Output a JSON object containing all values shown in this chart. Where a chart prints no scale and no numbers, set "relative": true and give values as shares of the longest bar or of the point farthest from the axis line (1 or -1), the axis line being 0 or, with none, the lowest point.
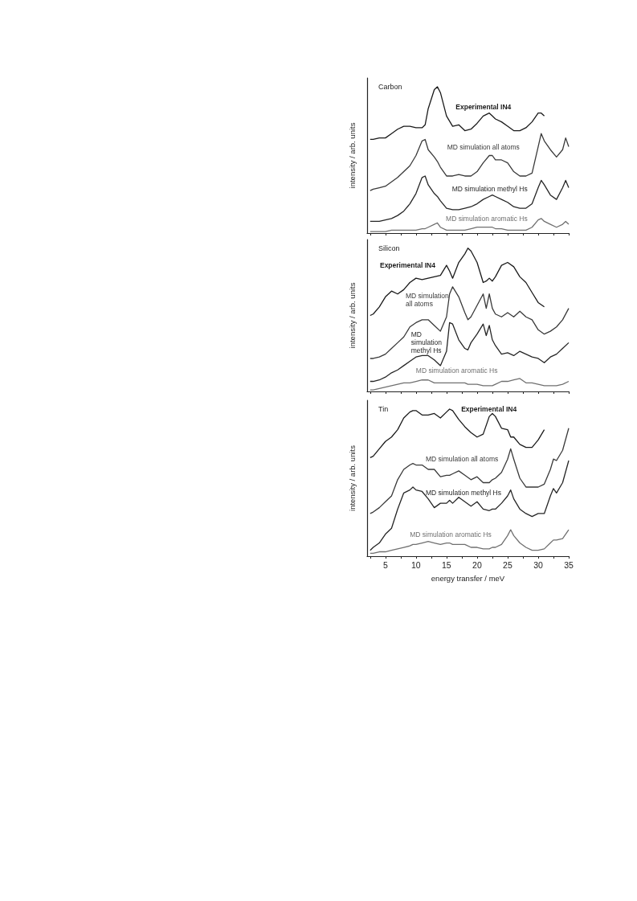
{
  "chart_data": [
    {
      "type": "line",
      "title": "Carbon",
      "ylabel": "intensity / arb. units",
      "relative": true,
      "marker": "none",
      "tick_labels": false,
      "xlim": [
        2,
        35
      ],
      "xticks": [
        {
          "value": 2.5,
          "label": null
        },
        {
          "value": 5,
          "label": null
        },
        {
          "value": 7.5,
          "label": null
        },
        {
          "value": 10,
          "label": null
        },
        {
          "value": 12.5,
          "label": null
        },
        {
          "value": 15,
          "label": null
        },
        {
          "value": 17.5,
          "label": null
        },
        {
          "value": 20,
          "label": null
        },
        {
          "value": 22.5,
          "label": null
        },
        {
          "value": 25,
          "label": null
        },
        {
          "value": 27.5,
          "label": null
        },
        {
          "value": 30,
          "label": null
        },
        {
          "value": 32.5,
          "label": null
        },
        {
          "value": 35,
          "label": null
        }
      ],
      "x": [
        2.5,
        3,
        4,
        5,
        6,
        7,
        8,
        9,
        10,
        11,
        11.5,
        12,
        13,
        13.5,
        14,
        15,
        16,
        17,
        18,
        19,
        20,
        21,
        22,
        22.5,
        23,
        24,
        25,
        26,
        27,
        28,
        29,
        30,
        30.5,
        31,
        32,
        33,
        34,
        34.5,
        35
      ],
      "series": [
        {
          "name": "Experimental IN4",
          "color": "#1a1a1a",
          "values": [
            0.64,
            0.64,
            0.65,
            0.65,
            0.68,
            0.71,
            0.73,
            0.73,
            0.72,
            0.72,
            0.74,
            0.85,
            0.98,
            1.0,
            0.96,
            0.8,
            0.73,
            0.74,
            0.7,
            0.71,
            0.75,
            0.8,
            0.82,
            0.8,
            0.78,
            0.76,
            0.73,
            0.7,
            0.7,
            0.72,
            0.76,
            0.82,
            0.82,
            0.8,
            null,
            null,
            null,
            null,
            null
          ]
        },
        {
          "name": "MD simulation all atoms",
          "color": "#3a3a3a",
          "values": [
            0.29,
            0.3,
            0.31,
            0.32,
            0.35,
            0.38,
            0.42,
            0.46,
            0.53,
            0.63,
            0.64,
            0.57,
            0.52,
            0.49,
            0.45,
            0.39,
            0.39,
            0.4,
            0.39,
            0.39,
            0.42,
            0.48,
            0.53,
            0.53,
            0.5,
            0.5,
            0.48,
            0.42,
            0.39,
            0.39,
            0.41,
            0.59,
            0.68,
            0.63,
            0.57,
            0.52,
            0.57,
            0.65,
            0.59
          ]
        },
        {
          "name": "MD simulation methyl Hs",
          "color": "#262626",
          "values": [
            0.08,
            0.08,
            0.08,
            0.09,
            0.1,
            0.12,
            0.15,
            0.2,
            0.27,
            0.38,
            0.39,
            0.33,
            0.27,
            0.25,
            0.22,
            0.17,
            0.16,
            0.16,
            0.17,
            0.18,
            0.2,
            0.23,
            0.25,
            0.26,
            0.25,
            0.23,
            0.21,
            0.18,
            0.17,
            0.17,
            0.2,
            0.31,
            0.36,
            0.33,
            0.26,
            0.23,
            0.31,
            0.36,
            0.31
          ]
        },
        {
          "name": "MD simulation aromatic Hs",
          "color": "#707070",
          "values": [
            0.01,
            0.01,
            0.01,
            0.01,
            0.02,
            0.02,
            0.02,
            0.02,
            0.02,
            0.03,
            0.03,
            0.04,
            0.06,
            0.07,
            0.04,
            0.02,
            0.02,
            0.02,
            0.02,
            0.03,
            0.04,
            0.04,
            0.04,
            0.04,
            0.03,
            0.03,
            0.02,
            0.02,
            0.02,
            0.02,
            0.04,
            0.09,
            0.1,
            0.08,
            0.06,
            0.04,
            0.06,
            0.08,
            0.06
          ]
        }
      ]
    },
    {
      "type": "line",
      "title": "Silicon",
      "ylabel": "intensity / arb. units",
      "relative": true,
      "marker": "none",
      "tick_labels": false,
      "xlim": [
        2,
        35
      ],
      "xticks": [
        {
          "value": 2.5,
          "label": null
        },
        {
          "value": 5,
          "label": null
        },
        {
          "value": 7.5,
          "label": null
        },
        {
          "value": 10,
          "label": null
        },
        {
          "value": 12.5,
          "label": null
        },
        {
          "value": 15,
          "label": null
        },
        {
          "value": 17.5,
          "label": null
        },
        {
          "value": 20,
          "label": null
        },
        {
          "value": 22.5,
          "label": null
        },
        {
          "value": 25,
          "label": null
        },
        {
          "value": 27.5,
          "label": null
        },
        {
          "value": 30,
          "label": null
        },
        {
          "value": 32.5,
          "label": null
        },
        {
          "value": 35,
          "label": null
        }
      ],
      "x": [
        2.5,
        3,
        4,
        5,
        6,
        7,
        8,
        9,
        10,
        11,
        12,
        13,
        14,
        15,
        15.5,
        16,
        17,
        18,
        18.5,
        19,
        20,
        21,
        21.5,
        22,
        22.5,
        23,
        24,
        25,
        26,
        27,
        28,
        29,
        30,
        31,
        32,
        33,
        34,
        35
      ],
      "series": [
        {
          "name": "Experimental IN4",
          "color": "#1a1a1a",
          "values": [
            0.53,
            0.54,
            0.59,
            0.66,
            0.7,
            0.68,
            0.71,
            0.76,
            0.79,
            0.78,
            0.79,
            0.8,
            0.81,
            0.88,
            0.84,
            0.79,
            0.9,
            0.96,
            1.0,
            0.98,
            0.9,
            0.76,
            0.77,
            0.79,
            0.77,
            0.8,
            0.88,
            0.9,
            0.87,
            0.8,
            0.76,
            0.69,
            0.62,
            0.59,
            null,
            null,
            null,
            null
          ]
        },
        {
          "name": "MD simulation all atoms",
          "color": "#3a3a3a",
          "values": [
            0.23,
            0.23,
            0.24,
            0.26,
            0.3,
            0.34,
            0.38,
            0.45,
            0.48,
            0.5,
            0.5,
            0.46,
            0.42,
            0.52,
            0.68,
            0.73,
            0.66,
            0.55,
            0.5,
            0.52,
            0.6,
            0.68,
            0.58,
            0.68,
            0.58,
            0.54,
            0.52,
            0.55,
            0.52,
            0.56,
            0.52,
            0.5,
            0.43,
            0.4,
            0.42,
            0.45,
            0.5,
            0.58
          ]
        },
        {
          "name": "MD simulation methyl Hs",
          "color": "#262626",
          "values": [
            0.07,
            0.07,
            0.08,
            0.1,
            0.13,
            0.15,
            0.18,
            0.21,
            0.24,
            0.25,
            0.25,
            0.22,
            0.18,
            0.28,
            0.48,
            0.47,
            0.36,
            0.3,
            0.29,
            0.34,
            0.4,
            0.47,
            0.39,
            0.46,
            0.36,
            0.32,
            0.26,
            0.27,
            0.25,
            0.28,
            0.26,
            0.24,
            0.23,
            0.2,
            0.24,
            0.26,
            0.3,
            0.34
          ]
        },
        {
          "name": "MD simulation aromatic Hs",
          "color": "#707070",
          "values": [
            0.01,
            0.01,
            0.02,
            0.03,
            0.04,
            0.05,
            0.06,
            0.06,
            0.07,
            0.08,
            0.08,
            0.06,
            0.06,
            0.06,
            0.06,
            0.06,
            0.06,
            0.06,
            0.05,
            0.05,
            0.05,
            0.04,
            0.04,
            0.04,
            0.04,
            0.05,
            0.07,
            0.07,
            0.08,
            0.09,
            0.06,
            0.06,
            0.05,
            0.04,
            0.04,
            0.04,
            0.05,
            0.07
          ]
        }
      ]
    },
    {
      "type": "line",
      "title": "Tin",
      "xlabel": "energy transfer / meV",
      "ylabel": "intensity / arb. units",
      "relative": true,
      "marker": "none",
      "tick_labels": "x",
      "xlim": [
        2,
        35
      ],
      "xticks": [
        {
          "value": 2.5,
          "label": null
        },
        5,
        {
          "value": 7.5,
          "label": null
        },
        10,
        {
          "value": 12.5,
          "label": null
        },
        15,
        {
          "value": 17.5,
          "label": null
        },
        20,
        {
          "value": 22.5,
          "label": null
        },
        25,
        {
          "value": 27.5,
          "label": null
        },
        30,
        {
          "value": 32.5,
          "label": null
        },
        35
      ],
      "x": [
        2.5,
        3,
        4,
        5,
        6,
        7,
        8,
        9,
        9.5,
        10,
        11,
        12,
        13,
        14,
        15,
        15.5,
        16,
        17,
        18,
        19,
        20,
        21,
        22,
        22.5,
        23,
        24,
        25,
        25.5,
        26,
        27,
        28,
        29,
        30,
        31,
        32,
        32.5,
        33,
        34,
        35
      ],
      "series": [
        {
          "name": "Experimental IN4",
          "color": "#1a1a1a",
          "values": [
            0.67,
            0.68,
            0.73,
            0.78,
            0.81,
            0.86,
            0.94,
            0.98,
            0.99,
            0.99,
            0.96,
            0.96,
            0.97,
            0.94,
            0.98,
            1.0,
            0.99,
            0.93,
            0.88,
            0.84,
            0.81,
            0.83,
            0.95,
            0.97,
            0.95,
            0.87,
            0.86,
            0.81,
            0.81,
            0.76,
            0.74,
            0.74,
            0.79,
            0.86,
            null,
            null,
            null,
            null,
            null
          ]
        },
        {
          "name": "MD simulation all atoms",
          "color": "#3a3a3a",
          "values": [
            0.29,
            0.3,
            0.33,
            0.37,
            0.41,
            0.52,
            0.59,
            0.62,
            0.63,
            0.62,
            0.62,
            0.59,
            0.59,
            0.54,
            0.55,
            0.55,
            0.56,
            0.58,
            0.55,
            0.52,
            0.54,
            0.5,
            0.5,
            0.52,
            0.53,
            0.57,
            0.66,
            0.73,
            0.66,
            0.53,
            0.47,
            0.47,
            0.47,
            0.49,
            0.59,
            0.66,
            0.65,
            0.72,
            0.87
          ]
        },
        {
          "name": "MD simulation methyl Hs",
          "color": "#262626",
          "values": [
            0.04,
            0.06,
            0.09,
            0.15,
            0.19,
            0.32,
            0.43,
            0.45,
            0.47,
            0.45,
            0.44,
            0.39,
            0.33,
            0.36,
            0.36,
            0.38,
            0.36,
            0.4,
            0.37,
            0.34,
            0.37,
            0.32,
            0.31,
            0.32,
            0.32,
            0.36,
            0.41,
            0.45,
            0.39,
            0.32,
            0.29,
            0.27,
            0.29,
            0.29,
            0.41,
            0.46,
            0.43,
            0.5,
            0.65
          ]
        },
        {
          "name": "MD simulation aromatic Hs",
          "color": "#707070",
          "values": [
            0.02,
            0.02,
            0.03,
            0.03,
            0.04,
            0.05,
            0.06,
            0.07,
            0.08,
            0.08,
            0.09,
            0.1,
            0.09,
            0.08,
            0.09,
            0.09,
            0.08,
            0.08,
            0.08,
            0.06,
            0.06,
            0.05,
            0.05,
            0.06,
            0.06,
            0.08,
            0.14,
            0.18,
            0.14,
            0.09,
            0.06,
            0.04,
            0.04,
            0.05,
            0.09,
            0.11,
            0.11,
            0.12,
            0.18
          ]
        }
      ]
    }
  ]
}
